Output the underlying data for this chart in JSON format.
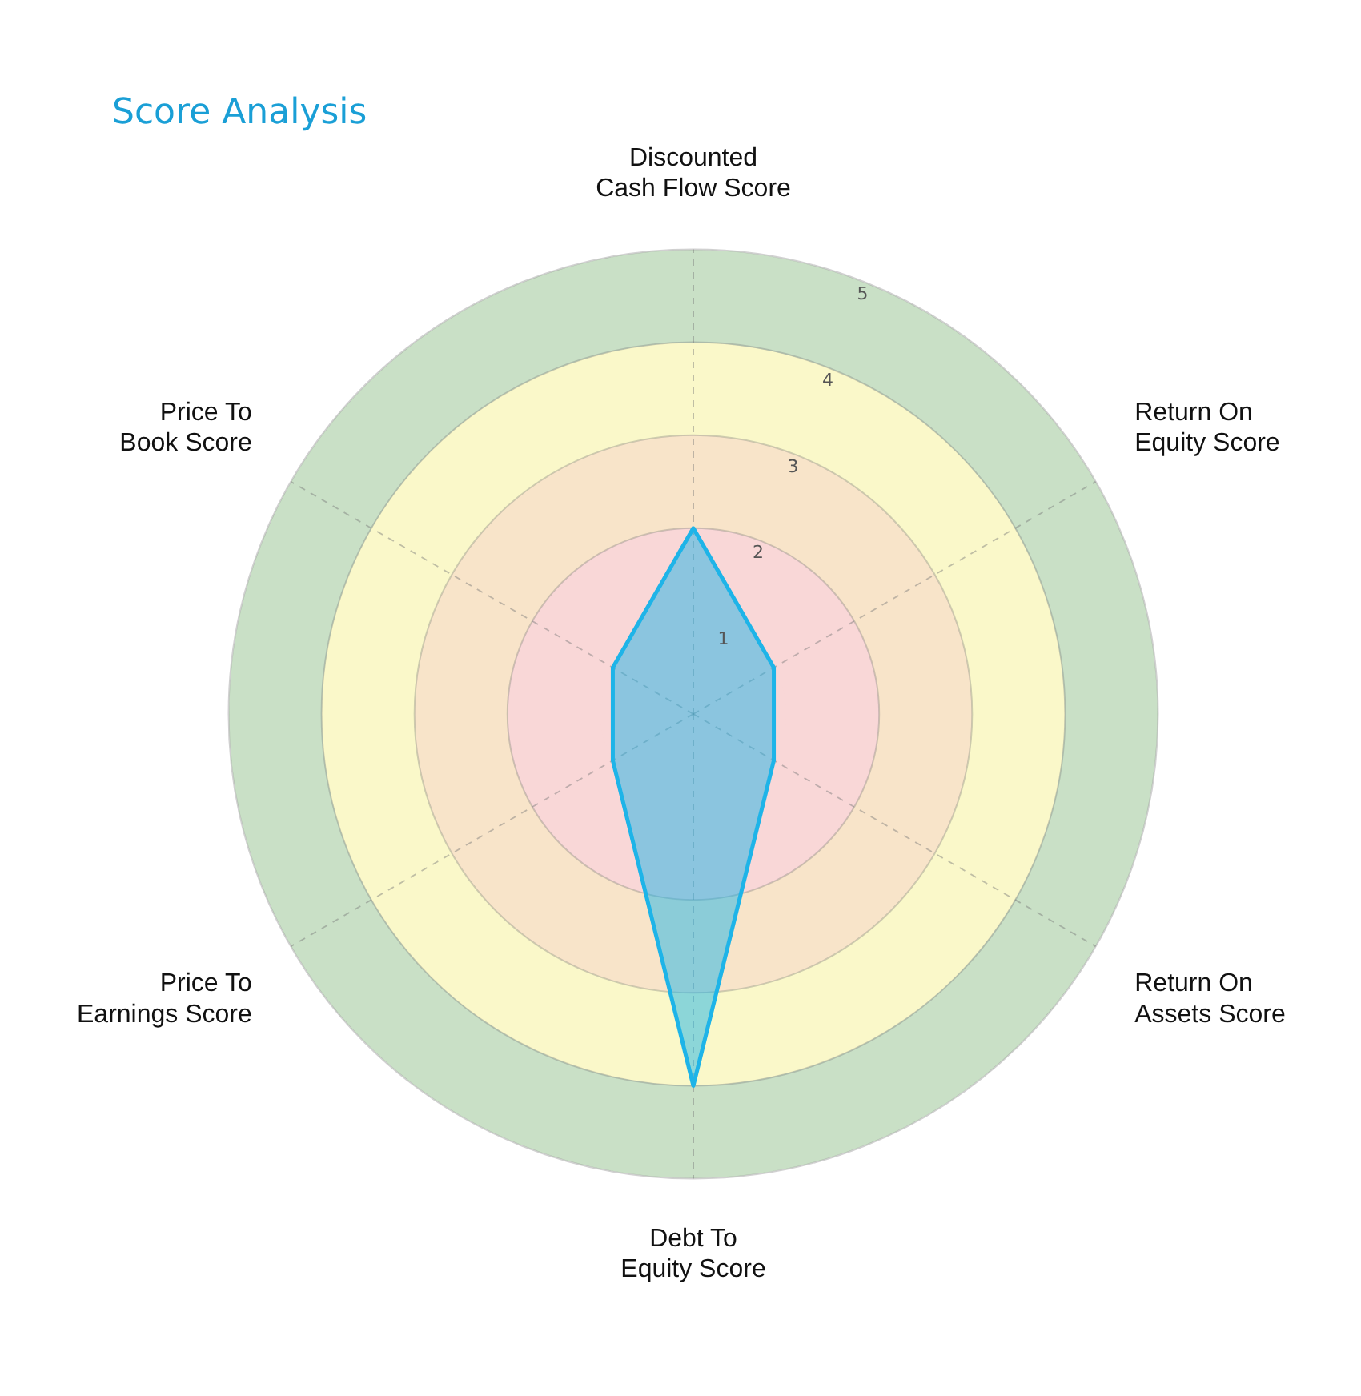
{
  "chart_data": {
    "type": "radar",
    "title": "Score Analysis",
    "categories": [
      "Discounted Cash Flow Score",
      "Return On Equity Score",
      "Return On Assets Score",
      "Debt To Equity Score",
      "Price To Earnings Score",
      "Price To Book Score"
    ],
    "series": [
      {
        "color": "#1eb4e8",
        "values": [
          2,
          1,
          1,
          4,
          1,
          1
        ]
      }
    ],
    "ylim": [
      0,
      5
    ],
    "yticks": [
      1,
      2,
      3,
      4,
      5
    ],
    "grid": true,
    "legend": false,
    "marker": "none",
    "line_style": "solid"
  }
}
